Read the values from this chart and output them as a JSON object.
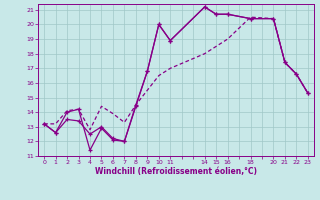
{
  "xlabel": "Windchill (Refroidissement éolien,°C)",
  "bg_color": "#c8e8e8",
  "grid_color": "#a0c8c8",
  "line_color": "#880088",
  "spine_color": "#880088",
  "xlim": [
    -0.5,
    23.5
  ],
  "ylim": [
    11,
    21.4
  ],
  "xtick_labels": [
    "0",
    "1",
    "2",
    "3",
    "4",
    "5",
    "6",
    "7",
    "8",
    "9",
    "1011",
    "",
    "",
    "141516",
    "",
    "",
    "18",
    "",
    "2021",
    "",
    "2223"
  ],
  "yticks": [
    11,
    12,
    13,
    14,
    15,
    16,
    17,
    18,
    19,
    20,
    21
  ],
  "line1_x": [
    0,
    1,
    2,
    3,
    4,
    5,
    6,
    7,
    8,
    9,
    10,
    11,
    14,
    15,
    16,
    18,
    20,
    21,
    22,
    23
  ],
  "line1_y": [
    13.2,
    12.6,
    13.5,
    13.4,
    12.5,
    13.0,
    12.2,
    12.0,
    14.4,
    16.8,
    20.0,
    18.9,
    21.2,
    20.7,
    20.7,
    20.4,
    20.4,
    17.4,
    16.6,
    15.3
  ],
  "line2_x": [
    0,
    1,
    2,
    3,
    4,
    5,
    6,
    7,
    8,
    9,
    10,
    11,
    14,
    15,
    16,
    18,
    20,
    21,
    22,
    23
  ],
  "line2_y": [
    13.2,
    12.6,
    14.0,
    14.2,
    11.4,
    12.9,
    12.1,
    12.0,
    14.5,
    16.8,
    20.0,
    18.9,
    21.2,
    20.7,
    20.7,
    20.4,
    20.4,
    17.4,
    16.6,
    15.3
  ],
  "line3_x": [
    0,
    1,
    2,
    3,
    4,
    5,
    6,
    7,
    8,
    9,
    10,
    11,
    14,
    15,
    16,
    18,
    20,
    21,
    22,
    23
  ],
  "line3_y": [
    13.2,
    13.2,
    14.1,
    14.2,
    12.8,
    14.4,
    13.9,
    13.3,
    14.5,
    15.5,
    16.5,
    17.0,
    18.0,
    18.5,
    19.0,
    20.5,
    20.4,
    17.4,
    16.6,
    15.3
  ]
}
